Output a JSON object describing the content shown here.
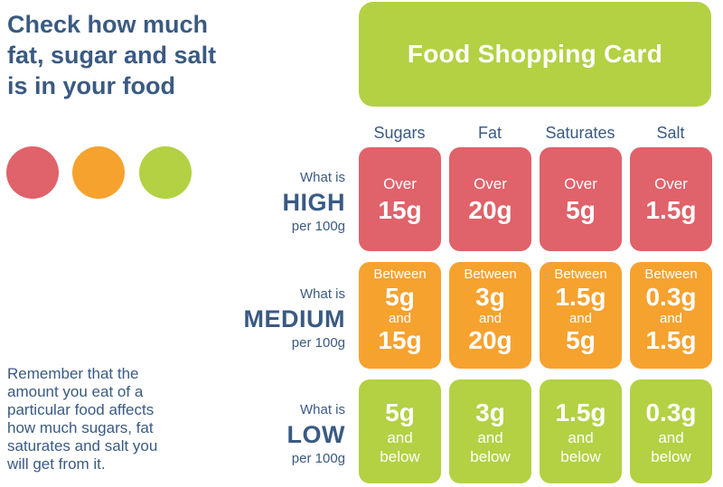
{
  "headline": [
    "Check how much",
    "fat, sugar and salt",
    "is in your food"
  ],
  "colors": {
    "red": "#e0626a",
    "amber": "#f6a22f",
    "green": "#b3d143",
    "text": "#3a5a82"
  },
  "card_title": "Food Shopping Card",
  "note": [
    "Remember that the",
    "amount you eat of a",
    "particular food affects",
    "how much sugars, fat",
    "saturates and salt you",
    "will get from it."
  ],
  "columns": [
    "Sugars",
    "Fat",
    "Saturates",
    "Salt"
  ],
  "rows": {
    "high": {
      "label_top": "What is",
      "label_level": "HIGH",
      "label_bottom": "per 100g",
      "cells": [
        {
          "pre": "Over",
          "value": "15g"
        },
        {
          "pre": "Over",
          "value": "20g"
        },
        {
          "pre": "Over",
          "value": "5g"
        },
        {
          "pre": "Over",
          "value": "1.5g"
        }
      ]
    },
    "medium": {
      "label_top": "What is",
      "label_level": "MEDIUM",
      "label_bottom": "per 100g",
      "cells": [
        {
          "pre": "Between",
          "from": "5g",
          "mid": "and",
          "to": "15g"
        },
        {
          "pre": "Between",
          "from": "3g",
          "mid": "and",
          "to": "20g"
        },
        {
          "pre": "Between",
          "from": "1.5g",
          "mid": "and",
          "to": "5g"
        },
        {
          "pre": "Between",
          "from": "0.3g",
          "mid": "and",
          "to": "1.5g"
        }
      ]
    },
    "low": {
      "label_top": "What is",
      "label_level": "LOW",
      "label_bottom": "per 100g",
      "cells": [
        {
          "value": "5g",
          "post1": "and",
          "post2": "below"
        },
        {
          "value": "3g",
          "post1": "and",
          "post2": "below"
        },
        {
          "value": "1.5g",
          "post1": "and",
          "post2": "below"
        },
        {
          "value": "0.3g",
          "post1": "and",
          "post2": "below"
        }
      ]
    }
  }
}
